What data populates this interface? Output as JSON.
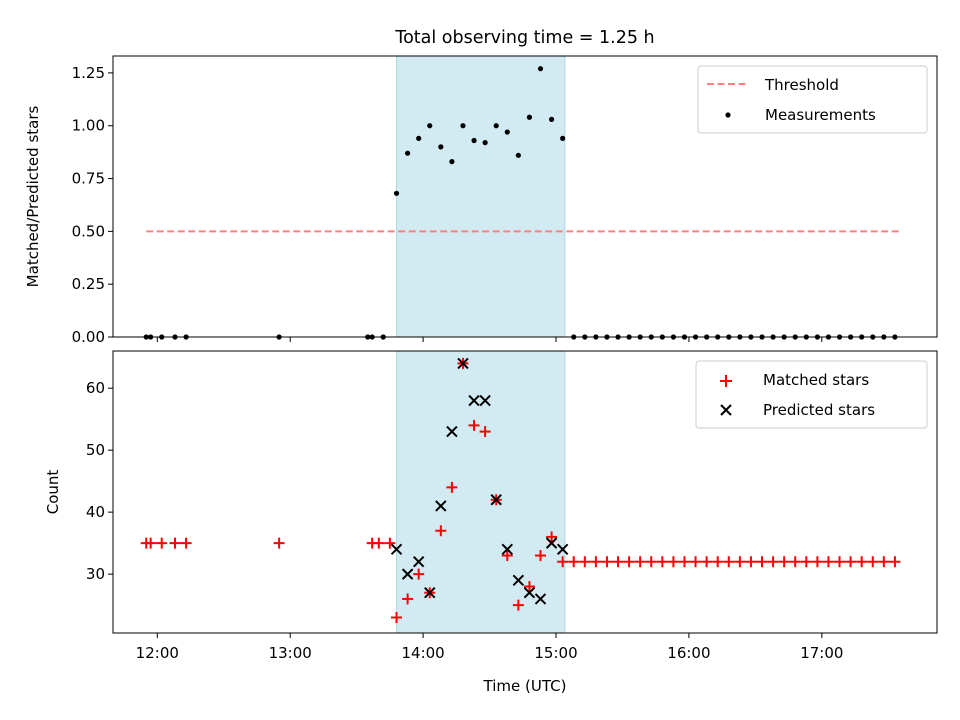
{
  "chart_data": {
    "title": "Total observing time = 1.25 h",
    "xlabel": "Time (UTC)",
    "x_ticks": [
      "12:00",
      "13:00",
      "14:00",
      "15:00",
      "16:00",
      "17:00"
    ],
    "xlim": [
      "11:40",
      "17:52"
    ],
    "shaded_interval": [
      "13:48",
      "15:04"
    ],
    "colors": {
      "threshold": "#ff7f7f",
      "measurements": "#000000",
      "matched": "#ff0000",
      "predicted": "#000000",
      "shade": "#add8e6"
    },
    "panels": [
      {
        "type": "scatter",
        "ylabel": "Matched/Predicted stars",
        "ylim": [
          0,
          1.33
        ],
        "y_ticks": [
          "0.00",
          "0.25",
          "0.50",
          "0.75",
          "1.00",
          "1.25"
        ],
        "legend_position": "top-right",
        "series": [
          {
            "name": "Threshold",
            "style": "dashed-line",
            "x": [
              "11:55",
              "17:35"
            ],
            "y": [
              0.5,
              0.5
            ]
          },
          {
            "name": "Measurements",
            "style": "dots",
            "x": [
              "11:55",
              "11:57",
              "12:02",
              "12:08",
              "12:13",
              "12:55",
              "13:35",
              "13:37",
              "13:42",
              "13:48",
              "13:53",
              "13:58",
              "14:03",
              "14:08",
              "14:13",
              "14:18",
              "14:23",
              "14:28",
              "14:33",
              "14:38",
              "14:43",
              "14:48",
              "14:53",
              "14:58",
              "15:03",
              "15:08",
              "15:13",
              "15:18",
              "15:23",
              "15:28",
              "15:33",
              "15:38",
              "15:43",
              "15:48",
              "15:53",
              "15:58",
              "16:03",
              "16:08",
              "16:13",
              "16:18",
              "16:23",
              "16:28",
              "16:33",
              "16:38",
              "16:43",
              "16:48",
              "16:53",
              "16:58",
              "17:03",
              "17:08",
              "17:13",
              "17:18",
              "17:23",
              "17:28",
              "17:33"
            ],
            "y": [
              0,
              0,
              0,
              0,
              0,
              0,
              0,
              0,
              0,
              0.68,
              0.87,
              0.94,
              1.0,
              0.9,
              0.83,
              1.0,
              0.93,
              0.92,
              1.0,
              0.97,
              0.86,
              1.04,
              1.27,
              1.03,
              0.94,
              0,
              0,
              0,
              0,
              0,
              0,
              0,
              0,
              0,
              0,
              0,
              0,
              0,
              0,
              0,
              0,
              0,
              0,
              0,
              0,
              0,
              0,
              0,
              0,
              0,
              0,
              0,
              0,
              0,
              0
            ]
          }
        ]
      },
      {
        "type": "scatter",
        "ylabel": "Count",
        "ylim": [
          20.5,
          66
        ],
        "y_ticks": [
          "30",
          "40",
          "50",
          "60"
        ],
        "legend_position": "top-right",
        "series": [
          {
            "name": "Matched stars",
            "marker": "plus",
            "x": [
              "11:55",
              "11:57",
              "12:02",
              "12:08",
              "12:13",
              "12:55",
              "13:37",
              "13:40",
              "13:45",
              "13:48",
              "13:53",
              "13:58",
              "14:03",
              "14:08",
              "14:13",
              "14:18",
              "14:23",
              "14:28",
              "14:33",
              "14:38",
              "14:43",
              "14:48",
              "14:53",
              "14:58",
              "15:03",
              "15:08",
              "15:13",
              "15:18",
              "15:23",
              "15:28",
              "15:33",
              "15:38",
              "15:43",
              "15:48",
              "15:53",
              "15:58",
              "16:03",
              "16:08",
              "16:13",
              "16:18",
              "16:23",
              "16:28",
              "16:33",
              "16:38",
              "16:43",
              "16:48",
              "16:53",
              "16:58",
              "17:03",
              "17:08",
              "17:13",
              "17:18",
              "17:23",
              "17:28",
              "17:33"
            ],
            "y": [
              35,
              35,
              35,
              35,
              35,
              35,
              35,
              35,
              35,
              23,
              26,
              30,
              27,
              37,
              44,
              64,
              54,
              53,
              42,
              33,
              25,
              28,
              33,
              36,
              32,
              32,
              32,
              32,
              32,
              32,
              32,
              32,
              32,
              32,
              32,
              32,
              32,
              32,
              32,
              32,
              32,
              32,
              32,
              32,
              32,
              32,
              32,
              32,
              32,
              32,
              32,
              32,
              32,
              32,
              32
            ]
          },
          {
            "name": "Predicted stars",
            "marker": "x",
            "x": [
              "13:48",
              "13:53",
              "13:58",
              "14:03",
              "14:08",
              "14:13",
              "14:18",
              "14:23",
              "14:28",
              "14:33",
              "14:38",
              "14:43",
              "14:48",
              "14:53",
              "14:58",
              "15:03"
            ],
            "y": [
              34,
              30,
              32,
              27,
              41,
              53,
              64,
              58,
              58,
              42,
              34,
              29,
              27,
              26,
              35,
              34
            ]
          }
        ]
      }
    ]
  }
}
